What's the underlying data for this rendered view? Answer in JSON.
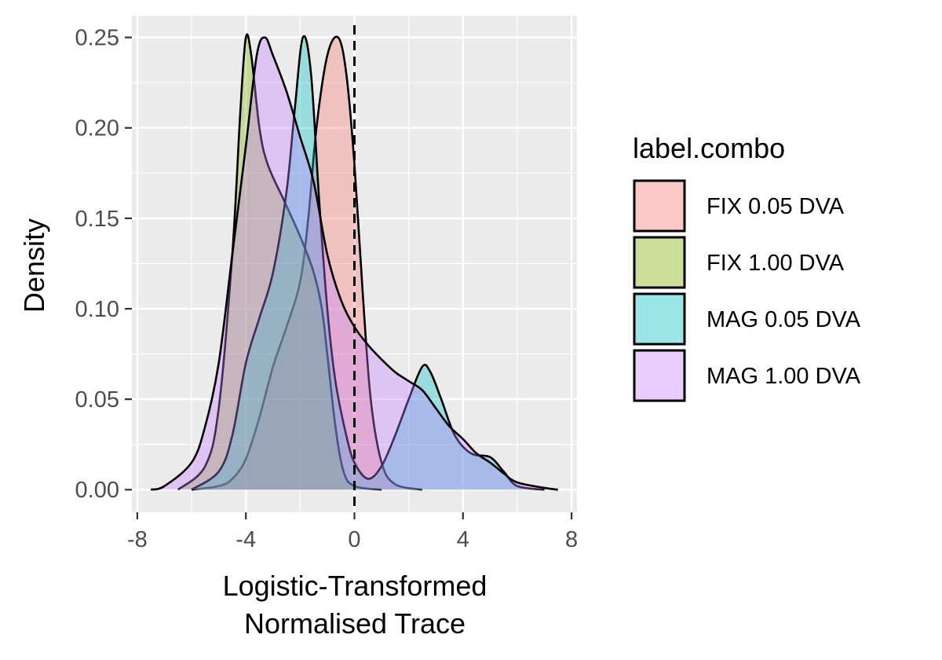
{
  "chart_data": {
    "type": "area",
    "subtype": "density",
    "xlabel": [
      "Logistic-Transformed",
      "Normalised Trace"
    ],
    "ylabel": "Density",
    "xlim": [
      -8.2,
      8.2
    ],
    "ylim": [
      -0.0125,
      0.262
    ],
    "x_ticks": [
      -8,
      -4,
      0,
      4,
      8
    ],
    "x_tick_labels": [
      "-8",
      "-4",
      "0",
      "4",
      "8"
    ],
    "y_ticks": [
      0.0,
      0.05,
      0.1,
      0.15,
      0.2,
      0.25
    ],
    "y_tick_labels": [
      "0.00",
      "0.05",
      "0.10",
      "0.15",
      "0.20",
      "0.25"
    ],
    "grid": true,
    "vline": {
      "x": 0,
      "style": "dashed"
    },
    "legend": {
      "title": "label.combo",
      "position": "right"
    },
    "series": [
      {
        "name": "FIX 0.05 DVA",
        "color": "#F8766D",
        "points": [
          [
            -6.0,
            0.0
          ],
          [
            -5.0,
            0.002
          ],
          [
            -4.5,
            0.006
          ],
          [
            -4.0,
            0.017
          ],
          [
            -3.5,
            0.04
          ],
          [
            -3.0,
            0.068
          ],
          [
            -2.5,
            0.09
          ],
          [
            -2.0,
            0.115
          ],
          [
            -1.7,
            0.15
          ],
          [
            -1.4,
            0.2
          ],
          [
            -1.0,
            0.24
          ],
          [
            -0.6,
            0.25
          ],
          [
            -0.3,
            0.23
          ],
          [
            0.0,
            0.18
          ],
          [
            0.3,
            0.11
          ],
          [
            0.6,
            0.05
          ],
          [
            1.0,
            0.015
          ],
          [
            1.5,
            0.003
          ],
          [
            2.5,
            0.0
          ]
        ]
      },
      {
        "name": "FIX 1.00 DVA",
        "color": "#7CAE00",
        "points": [
          [
            -6.5,
            0.0
          ],
          [
            -5.5,
            0.013
          ],
          [
            -5.0,
            0.045
          ],
          [
            -4.5,
            0.13
          ],
          [
            -4.2,
            0.21
          ],
          [
            -4.0,
            0.25
          ],
          [
            -3.8,
            0.24
          ],
          [
            -3.5,
            0.2
          ],
          [
            -3.2,
            0.18
          ],
          [
            -2.6,
            0.16
          ],
          [
            -2.0,
            0.14
          ],
          [
            -1.5,
            0.12
          ],
          [
            -1.2,
            0.1
          ],
          [
            -1.0,
            0.075
          ],
          [
            -0.7,
            0.035
          ],
          [
            -0.4,
            0.01
          ],
          [
            0.0,
            0.002
          ],
          [
            1.0,
            0.0
          ]
        ]
      },
      {
        "name": "MAG 0.05 DVA",
        "color": "#00BFC4",
        "points": [
          [
            -6.0,
            0.0
          ],
          [
            -5.0,
            0.01
          ],
          [
            -4.5,
            0.03
          ],
          [
            -4.0,
            0.07
          ],
          [
            -3.5,
            0.095
          ],
          [
            -3.0,
            0.12
          ],
          [
            -2.5,
            0.165
          ],
          [
            -2.2,
            0.21
          ],
          [
            -1.9,
            0.25
          ],
          [
            -1.6,
            0.23
          ],
          [
            -1.3,
            0.16
          ],
          [
            -1.0,
            0.1
          ],
          [
            -0.7,
            0.06
          ],
          [
            -0.3,
            0.03
          ],
          [
            0.0,
            0.015
          ],
          [
            0.5,
            0.006
          ],
          [
            1.0,
            0.013
          ],
          [
            1.5,
            0.03
          ],
          [
            2.0,
            0.05
          ],
          [
            2.5,
            0.068
          ],
          [
            2.8,
            0.065
          ],
          [
            3.2,
            0.05
          ],
          [
            3.7,
            0.03
          ],
          [
            4.3,
            0.02
          ],
          [
            5.0,
            0.018
          ],
          [
            5.5,
            0.01
          ],
          [
            6.0,
            0.002
          ],
          [
            7.0,
            0.0
          ]
        ]
      },
      {
        "name": "MAG 1.00 DVA",
        "color": "#C77CFF",
        "points": [
          [
            -7.5,
            0.0
          ],
          [
            -7.0,
            0.002
          ],
          [
            -6.0,
            0.015
          ],
          [
            -5.5,
            0.035
          ],
          [
            -5.0,
            0.07
          ],
          [
            -4.5,
            0.13
          ],
          [
            -4.0,
            0.19
          ],
          [
            -3.6,
            0.24
          ],
          [
            -3.3,
            0.25
          ],
          [
            -3.0,
            0.24
          ],
          [
            -2.5,
            0.22
          ],
          [
            -2.0,
            0.195
          ],
          [
            -1.5,
            0.17
          ],
          [
            -1.0,
            0.13
          ],
          [
            -0.5,
            0.105
          ],
          [
            0.0,
            0.09
          ],
          [
            0.5,
            0.08
          ],
          [
            1.0,
            0.072
          ],
          [
            1.5,
            0.065
          ],
          [
            2.0,
            0.06
          ],
          [
            2.5,
            0.055
          ],
          [
            3.0,
            0.045
          ],
          [
            3.5,
            0.035
          ],
          [
            4.0,
            0.028
          ],
          [
            4.5,
            0.02
          ],
          [
            5.0,
            0.015
          ],
          [
            5.5,
            0.009
          ],
          [
            6.0,
            0.004
          ],
          [
            7.0,
            0.001
          ],
          [
            7.5,
            0.0
          ]
        ]
      }
    ]
  }
}
